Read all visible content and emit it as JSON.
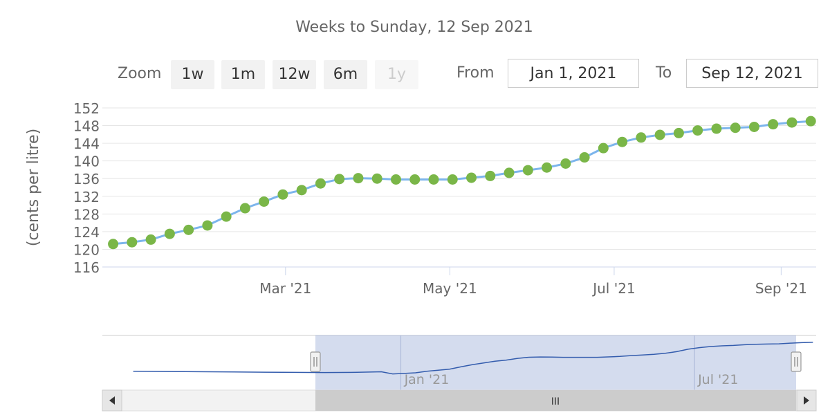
{
  "subtitle": "Weeks to Sunday, 12 Sep 2021",
  "range_selector": {
    "zoom_label": "Zoom",
    "buttons": [
      "1w",
      "1m",
      "12w",
      "6m",
      "1y"
    ],
    "from_label": "From",
    "from_value": "Jan 1, 2021",
    "to_label": "To",
    "to_value": "Sep 12, 2021"
  },
  "navigator": {
    "tick_labels": [
      "Jan '21",
      "Jul '21"
    ],
    "scrollbar_grip": "III"
  },
  "colors": {
    "line": "#7cb5ec",
    "marker": "#7ab648",
    "grid": "#e6e6e6",
    "navigator_mask": "#ccd6eb",
    "navigator_line": "#335cad"
  },
  "chart_data": {
    "type": "line",
    "title": "",
    "ylabel": "(cents per litre)",
    "ylim": [
      116,
      152
    ],
    "yticks": [
      116,
      120,
      124,
      128,
      132,
      136,
      140,
      144,
      148,
      152
    ],
    "xlim": [
      "2020-12-23",
      "2021-09-14"
    ],
    "xticks": [
      {
        "label": "Mar '21",
        "date": "2021-03-01"
      },
      {
        "label": "May '21",
        "date": "2021-05-01"
      },
      {
        "label": "Jul '21",
        "date": "2021-07-01"
      },
      {
        "label": "Sep '21",
        "date": "2021-09-01"
      }
    ],
    "grid": true,
    "series": [
      {
        "x": [
          "2020-12-27",
          "2021-01-03",
          "2021-01-10",
          "2021-01-17",
          "2021-01-24",
          "2021-01-31",
          "2021-02-07",
          "2021-02-14",
          "2021-02-21",
          "2021-02-28",
          "2021-03-07",
          "2021-03-14",
          "2021-03-21",
          "2021-03-28",
          "2021-04-04",
          "2021-04-11",
          "2021-04-18",
          "2021-04-25",
          "2021-05-02",
          "2021-05-09",
          "2021-05-16",
          "2021-05-23",
          "2021-05-30",
          "2021-06-06",
          "2021-06-13",
          "2021-06-20",
          "2021-06-27",
          "2021-07-04",
          "2021-07-11",
          "2021-07-18",
          "2021-07-25",
          "2021-08-01",
          "2021-08-08",
          "2021-08-15",
          "2021-08-22",
          "2021-08-29",
          "2021-09-05",
          "2021-09-12"
        ],
        "values": [
          121.2,
          121.6,
          122.2,
          123.5,
          124.4,
          125.4,
          127.4,
          129.3,
          130.8,
          132.4,
          133.4,
          134.9,
          135.9,
          136.1,
          136.0,
          135.8,
          135.8,
          135.8,
          135.8,
          136.2,
          136.6,
          137.3,
          137.9,
          138.5,
          139.4,
          140.8,
          142.9,
          144.3,
          145.3,
          145.9,
          146.3,
          146.9,
          147.3,
          147.5,
          147.7,
          148.3,
          148.7,
          149.0
        ]
      }
    ]
  }
}
